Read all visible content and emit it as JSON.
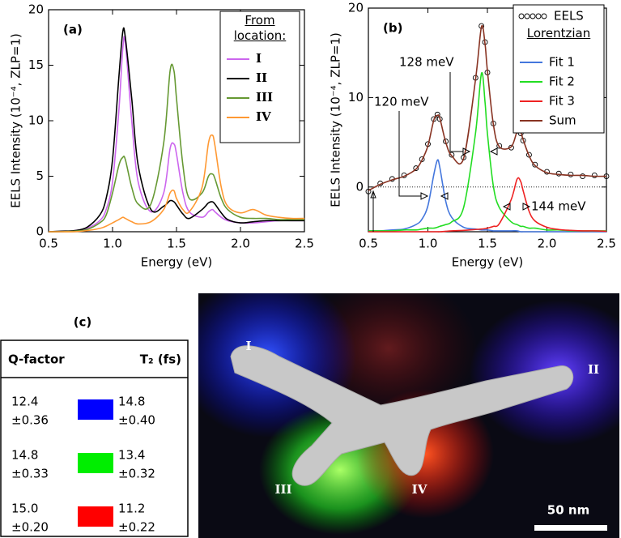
{
  "chart_data": [
    {
      "type": "line",
      "panel": "(a)",
      "x_label": "Energy (eV)",
      "y_label": "EELS Intensity (10⁻⁴, ZLP=1)",
      "legend_title": "From location:",
      "x": [
        0.5,
        0.6,
        0.7,
        0.8,
        0.9,
        0.95,
        1.0,
        1.05,
        1.08,
        1.1,
        1.15,
        1.2,
        1.3,
        1.4,
        1.45,
        1.48,
        1.5,
        1.55,
        1.6,
        1.7,
        1.75,
        1.78,
        1.8,
        1.85,
        1.9,
        2.0,
        2.1,
        2.2,
        2.3,
        2.4,
        2.5
      ],
      "series": [
        {
          "name": "I",
          "color": "#cc66ee",
          "values": [
            0,
            0,
            0.1,
            0.3,
            1,
            2,
            4.5,
            11,
            16.5,
            17,
            10,
            4.5,
            1.8,
            3.5,
            7.5,
            7.9,
            7,
            3.5,
            1.8,
            1.3,
            1.8,
            2,
            1.8,
            1.3,
            1,
            0.8,
            0.8,
            0.9,
            1,
            1,
            1
          ]
        },
        {
          "name": "II",
          "color": "#000000",
          "values": [
            0,
            0.05,
            0.1,
            0.4,
            1.5,
            3,
            6.5,
            14,
            18,
            17.5,
            12,
            6,
            2,
            2.3,
            2.8,
            2.7,
            2.4,
            1.6,
            1.2,
            2,
            2.6,
            2.7,
            2.5,
            1.7,
            1.1,
            0.8,
            0.9,
            1,
            1,
            1,
            1
          ]
        },
        {
          "name": "III",
          "color": "#669933",
          "values": [
            0,
            0,
            0.05,
            0.2,
            0.8,
            1.5,
            3.5,
            6,
            6.7,
            6.5,
            4,
            2.5,
            2.5,
            8,
            14.5,
            14.5,
            12,
            6,
            3,
            3.5,
            5,
            5.2,
            4.8,
            3,
            2,
            1.3,
            1.2,
            1.2,
            1.1,
            1.1,
            1.1
          ]
        },
        {
          "name": "IV",
          "color": "#ff9933",
          "values": [
            0,
            0,
            0,
            0.1,
            0.3,
            0.5,
            0.8,
            1.1,
            1.3,
            1.2,
            0.9,
            0.7,
            0.9,
            2,
            3.5,
            3.7,
            3,
            2,
            1.8,
            4,
            8,
            8.7,
            7.8,
            4,
            2.3,
            1.7,
            2,
            1.5,
            1.3,
            1.2,
            1.2
          ]
        }
      ],
      "xlim": [
        0.5,
        2.5
      ],
      "xticks": [
        0.5,
        {
          "value": 1,
          "label": "1.0"
        },
        1.5,
        {
          "value": 2,
          "label": "2.0"
        },
        2.5
      ],
      "ylim": [
        0,
        20
      ],
      "yticks": [
        0,
        5,
        10,
        15,
        20
      ]
    },
    {
      "type": "line",
      "panel": "(b)",
      "x_label": "Energy (eV)",
      "y_label": "EELS Intensity (10⁻⁴, ZLP=1)",
      "legend_title": "Lorentzian",
      "annotations": [
        "120 meV",
        "128 meV",
        "144 meV"
      ],
      "x": [
        0.5,
        0.6,
        0.7,
        0.8,
        0.9,
        0.95,
        1.0,
        1.05,
        1.08,
        1.1,
        1.15,
        1.2,
        1.3,
        1.4,
        1.45,
        1.48,
        1.5,
        1.55,
        1.6,
        1.7,
        1.75,
        1.78,
        1.8,
        1.85,
        1.9,
        2.0,
        2.1,
        2.2,
        2.3,
        2.4,
        2.5
      ],
      "series": [
        {
          "name": "EELS",
          "color": "#000000",
          "marker": "circle",
          "values": [
            -0.5,
            0.4,
            0.9,
            1.3,
            2.1,
            3.1,
            4.8,
            7.6,
            8.1,
            7.6,
            5.1,
            3.6,
            3.3,
            12.2,
            18,
            16.2,
            12.8,
            7.1,
            4.6,
            4.4,
            6.3,
            6.0,
            5.2,
            3.6,
            2.5,
            1.7,
            1.5,
            1.4,
            1.2,
            1.3,
            1.2
          ]
        },
        {
          "name": "Fit 1",
          "color": "#4477dd",
          "values": [
            -4.9,
            -4.9,
            -4.8,
            -4.7,
            -4.2,
            -3.6,
            -2.1,
            1.4,
            3,
            2.2,
            -1.6,
            -3.4,
            -4.5,
            -4.7,
            -4.8,
            -4.8,
            -4.8,
            -4.9,
            -4.9,
            -4.9,
            -4.9,
            -5,
            -5,
            -5,
            -5,
            -5,
            -5,
            -5,
            -5,
            -5,
            -5
          ]
        },
        {
          "name": "Fit 2",
          "color": "#22dd22",
          "values": [
            -4.9,
            -4.9,
            -4.9,
            -4.8,
            -4.8,
            -4.7,
            -4.6,
            -4.6,
            -4.5,
            -4.4,
            -4.2,
            -3.9,
            -2.3,
            6,
            12.7,
            9.5,
            6,
            0.1,
            -2.3,
            -3.9,
            -4.2,
            -4.4,
            -4.4,
            -4.6,
            -4.6,
            -4.8,
            -4.8,
            -4.9,
            -4.9,
            -4.9,
            -4.9
          ]
        },
        {
          "name": "Fit 3",
          "color": "#ee2222",
          "values": [
            -5,
            -5,
            -5,
            -5,
            -5,
            -5,
            -5,
            -5,
            -5,
            -5,
            -4.95,
            -4.9,
            -4.85,
            -4.75,
            -4.7,
            -4.65,
            -4.6,
            -4.4,
            -4.1,
            -1.4,
            0.9,
            0.6,
            -0.4,
            -2.7,
            -3.8,
            -4.5,
            -4.75,
            -4.85,
            -4.9,
            -4.9,
            -4.95
          ]
        },
        {
          "name": "Sum",
          "color": "#883322",
          "values": [
            -0.4,
            0.3,
            0.8,
            1.2,
            2,
            3,
            4.6,
            7.5,
            8,
            7.7,
            5,
            3.5,
            3.2,
            12,
            17.9,
            16,
            13,
            7,
            4.5,
            4.5,
            6.2,
            6.1,
            5.3,
            3.5,
            2.4,
            1.6,
            1.4,
            1.3,
            1.3,
            1.2,
            1.2
          ]
        }
      ],
      "xlim": [
        0.5,
        2.5
      ],
      "xticks": [
        0.5,
        {
          "value": 1,
          "label": "1.0"
        },
        1.5,
        {
          "value": 2,
          "label": "2.0"
        },
        2.5
      ],
      "ylim": [
        -5,
        20
      ],
      "yticks": [
        0,
        10,
        20
      ]
    }
  ],
  "table": {
    "panel": "(c)",
    "headers": [
      "Q-factor",
      "T₂ (fs)"
    ],
    "rows": [
      {
        "q": "12.4",
        "q_err": "±0.36",
        "t2": "14.8",
        "t2_err": "±0.40",
        "color": "#0000ff"
      },
      {
        "q": "14.8",
        "q_err": "±0.33",
        "t2": "13.4",
        "t2_err": "±0.32",
        "color": "#00ee00"
      },
      {
        "q": "15.0",
        "q_err": "±0.20",
        "t2": "11.2",
        "t2_err": "±0.22",
        "color": "#ff0000"
      }
    ]
  },
  "image": {
    "labels": [
      "I",
      "II",
      "III",
      "IV"
    ],
    "scale_bar": "50 nm"
  }
}
